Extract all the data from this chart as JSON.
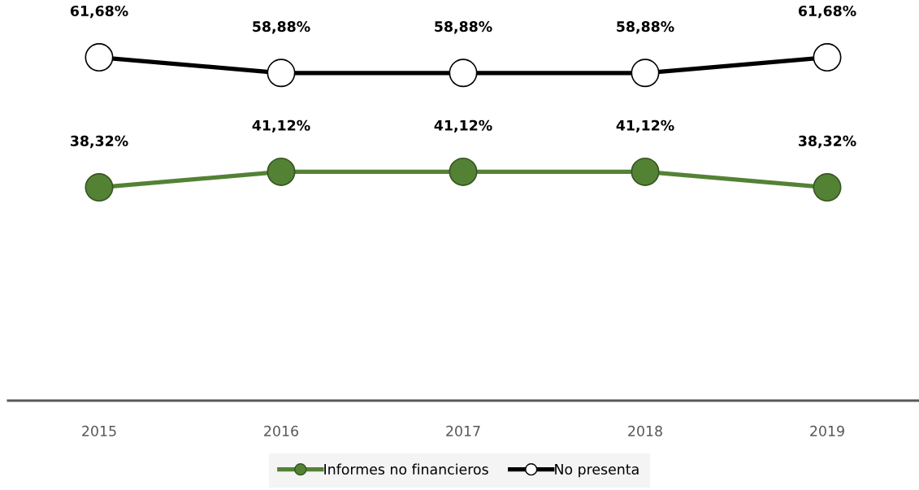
{
  "chart_data": {
    "type": "line",
    "categories": [
      "2015",
      "2016",
      "2017",
      "2018",
      "2019"
    ],
    "series": [
      {
        "name": "Informes no financieros",
        "color": "#548235",
        "values": [
          38.32,
          41.12,
          41.12,
          41.12,
          38.32
        ],
        "value_labels": [
          "38,32%",
          "41,12%",
          "41,12%",
          "41,12%",
          "38,32%"
        ]
      },
      {
        "name": "No presenta",
        "color": "#000000",
        "values": [
          61.68,
          58.88,
          58.88,
          58.88,
          61.68
        ],
        "value_labels": [
          "61,68%",
          "58,88%",
          "58,88%",
          "58,88%",
          "61,68%"
        ]
      }
    ],
    "marker": "circle",
    "line_style": "solid",
    "legend": "bottom",
    "grid": false
  }
}
